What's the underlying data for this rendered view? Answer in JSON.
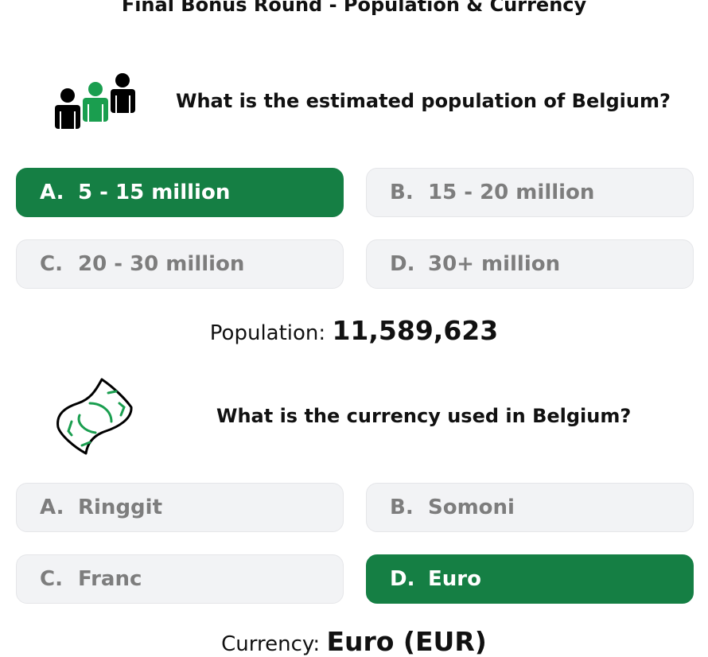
{
  "title": "Final Bonus Round - Population & Currency",
  "colors": {
    "accent": "#157f44",
    "option_bg": "#f2f3f5",
    "option_text": "#7d7d7d"
  },
  "questions": [
    {
      "icon": "people-icon",
      "text": "What is the estimated population of Belgium?",
      "options": [
        {
          "letter": "A.",
          "label": "5 - 15 million",
          "selected": true
        },
        {
          "letter": "B.",
          "label": "15 - 20 million",
          "selected": false
        },
        {
          "letter": "C.",
          "label": "20 - 30 million",
          "selected": false
        },
        {
          "letter": "D.",
          "label": "30+ million",
          "selected": false
        }
      ],
      "result_label": "Population:",
      "result_value": "11,589,623"
    },
    {
      "icon": "banknote-icon",
      "text": "What is the currency used in Belgium?",
      "options": [
        {
          "letter": "A.",
          "label": "Ringgit",
          "selected": false
        },
        {
          "letter": "B.",
          "label": "Somoni",
          "selected": false
        },
        {
          "letter": "C.",
          "label": "Franc",
          "selected": false
        },
        {
          "letter": "D.",
          "label": "Euro",
          "selected": true
        }
      ],
      "result_label": "Currency:",
      "result_value": "Euro (EUR)"
    }
  ]
}
